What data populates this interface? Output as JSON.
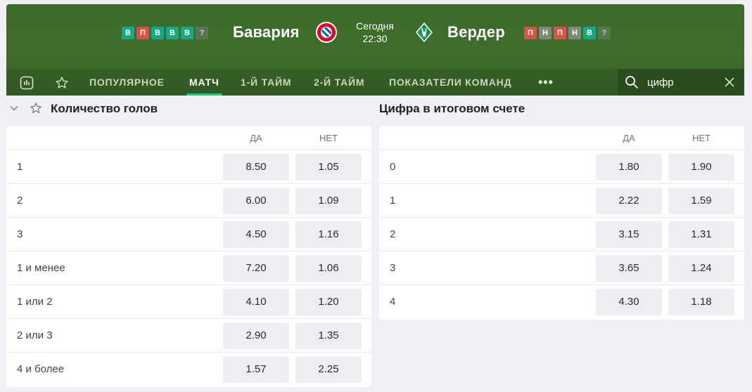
{
  "match": {
    "home_team": "Бавария",
    "away_team": "Вердер",
    "date_label": "Сегодня",
    "time": "22:30",
    "home_form": [
      {
        "r": "В",
        "type": "w"
      },
      {
        "r": "П",
        "type": "l"
      },
      {
        "r": "В",
        "type": "w"
      },
      {
        "r": "В",
        "type": "w"
      },
      {
        "r": "В",
        "type": "w"
      },
      {
        "r": "?",
        "type": "q"
      }
    ],
    "away_form": [
      {
        "r": "П",
        "type": "l"
      },
      {
        "r": "Н",
        "type": "d"
      },
      {
        "r": "П",
        "type": "l"
      },
      {
        "r": "Н",
        "type": "d"
      },
      {
        "r": "В",
        "type": "w"
      },
      {
        "r": "?",
        "type": "q"
      }
    ]
  },
  "tabs": {
    "popular": "ПОПУЛЯРНОЕ",
    "match": "МАТЧ",
    "first_half": "1-Й ТАЙМ",
    "second_half": "2-Й ТАЙМ",
    "team_stats": "ПОКАЗАТЕЛИ КОМАНД",
    "more": "•••"
  },
  "search": {
    "value": "цифр"
  },
  "goals_market": {
    "title": "Количество голов",
    "yes_header": "ДА",
    "no_header": "НЕТ",
    "rows": [
      {
        "label": "1",
        "yes": "8.50",
        "no": "1.05"
      },
      {
        "label": "2",
        "yes": "6.00",
        "no": "1.09"
      },
      {
        "label": "3",
        "yes": "4.50",
        "no": "1.16"
      },
      {
        "label": "1 и менее",
        "yes": "7.20",
        "no": "1.06"
      },
      {
        "label": "1 или 2",
        "yes": "4.10",
        "no": "1.20"
      },
      {
        "label": "2 или 3",
        "yes": "2.90",
        "no": "1.35"
      },
      {
        "label": "4 и более",
        "yes": "1.57",
        "no": "2.25"
      }
    ]
  },
  "digit_market": {
    "title": "Цифра в итоговом счете",
    "yes_header": "ДА",
    "no_header": "НЕТ",
    "rows": [
      {
        "label": "0",
        "yes": "1.80",
        "no": "1.90"
      },
      {
        "label": "1",
        "yes": "2.22",
        "no": "1.59"
      },
      {
        "label": "2",
        "yes": "3.15",
        "no": "1.31"
      },
      {
        "label": "3",
        "yes": "3.65",
        "no": "1.24"
      },
      {
        "label": "4",
        "yes": "4.30",
        "no": "1.18"
      }
    ]
  },
  "colors": {
    "header_green": "#3f6d2c",
    "win": "#17a884",
    "loss": "#d6534c",
    "draw": "#7f8a7a",
    "active_tab_underline": "#21c77e"
  }
}
